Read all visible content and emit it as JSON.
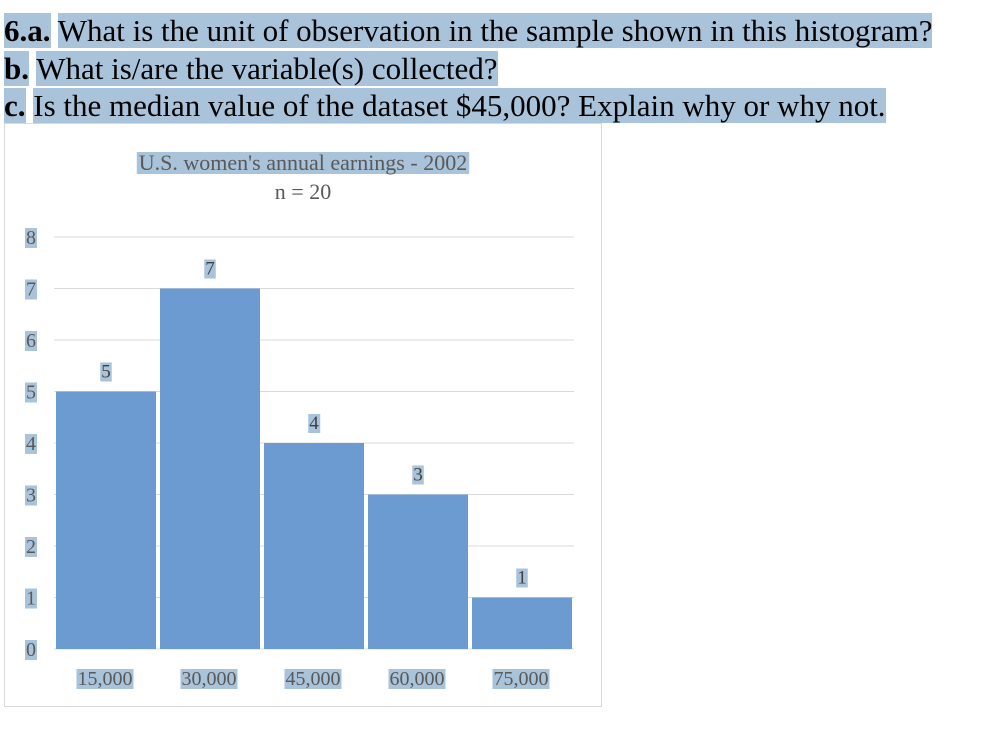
{
  "question": {
    "line_a": {
      "number": "6.a.",
      "text": "What is the unit of observation in the sample shown in this histogram?"
    },
    "line_b": {
      "number": "b.",
      "text": "What is/are the variable(s) collected?"
    },
    "line_c": {
      "number": "c.",
      "text": "Is the median value of the dataset $45,000?   Explain why or why not."
    }
  },
  "colors": {
    "highlight": "#a9c3db",
    "bar": "#6b9bd1",
    "gridline": "#d9d9d9",
    "axis_text": "#595959"
  },
  "chart_data": {
    "type": "bar",
    "title": "U.S. women's annual earnings - 2002",
    "subtitle": "n = 20",
    "categories": [
      "15,000",
      "30,000",
      "45,000",
      "60,000",
      "75,000"
    ],
    "values": [
      5,
      7,
      4,
      3,
      1
    ],
    "data_labels": [
      "5",
      "7",
      "4",
      "3",
      "1"
    ],
    "yticks": [
      "0",
      "1",
      "2",
      "3",
      "4",
      "5",
      "6",
      "7",
      "8"
    ],
    "ylim": [
      0,
      8
    ],
    "grid": true,
    "legend": "none",
    "xlabel": "",
    "ylabel": ""
  }
}
